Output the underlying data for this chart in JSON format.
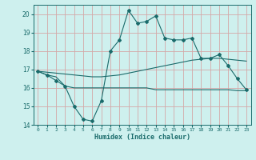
{
  "x": [
    0,
    1,
    2,
    3,
    4,
    5,
    6,
    7,
    8,
    9,
    10,
    11,
    12,
    13,
    14,
    15,
    16,
    17,
    18,
    19,
    20,
    21,
    22,
    23
  ],
  "y_main": [
    16.9,
    16.7,
    16.4,
    16.1,
    15.0,
    14.3,
    14.2,
    15.3,
    18.0,
    18.6,
    20.2,
    19.5,
    19.6,
    19.9,
    18.7,
    18.6,
    18.6,
    18.7,
    17.6,
    17.6,
    17.8,
    17.2,
    16.5,
    15.9
  ],
  "y_mid": [
    16.9,
    16.85,
    16.8,
    16.75,
    16.7,
    16.65,
    16.6,
    16.6,
    16.65,
    16.7,
    16.8,
    16.9,
    17.0,
    17.1,
    17.2,
    17.3,
    17.4,
    17.5,
    17.55,
    17.6,
    17.6,
    17.55,
    17.5,
    17.45
  ],
  "y_bot": [
    16.9,
    16.7,
    16.6,
    16.1,
    16.0,
    16.0,
    16.0,
    16.0,
    16.0,
    16.0,
    16.0,
    16.0,
    16.0,
    15.9,
    15.9,
    15.9,
    15.9,
    15.9,
    15.9,
    15.9,
    15.9,
    15.9,
    15.85,
    15.85
  ],
  "bg_color": "#cef0ee",
  "grid_color": "#d4a8a8",
  "line_color": "#1a6b6b",
  "xlabel": "Humidex (Indice chaleur)",
  "ylim": [
    14,
    20.5
  ],
  "xlim": [
    -0.5,
    23.5
  ],
  "yticks": [
    14,
    15,
    16,
    17,
    18,
    19,
    20
  ],
  "xticks": [
    0,
    1,
    2,
    3,
    4,
    5,
    6,
    7,
    8,
    9,
    10,
    11,
    12,
    13,
    14,
    15,
    16,
    17,
    18,
    19,
    20,
    21,
    22,
    23
  ]
}
